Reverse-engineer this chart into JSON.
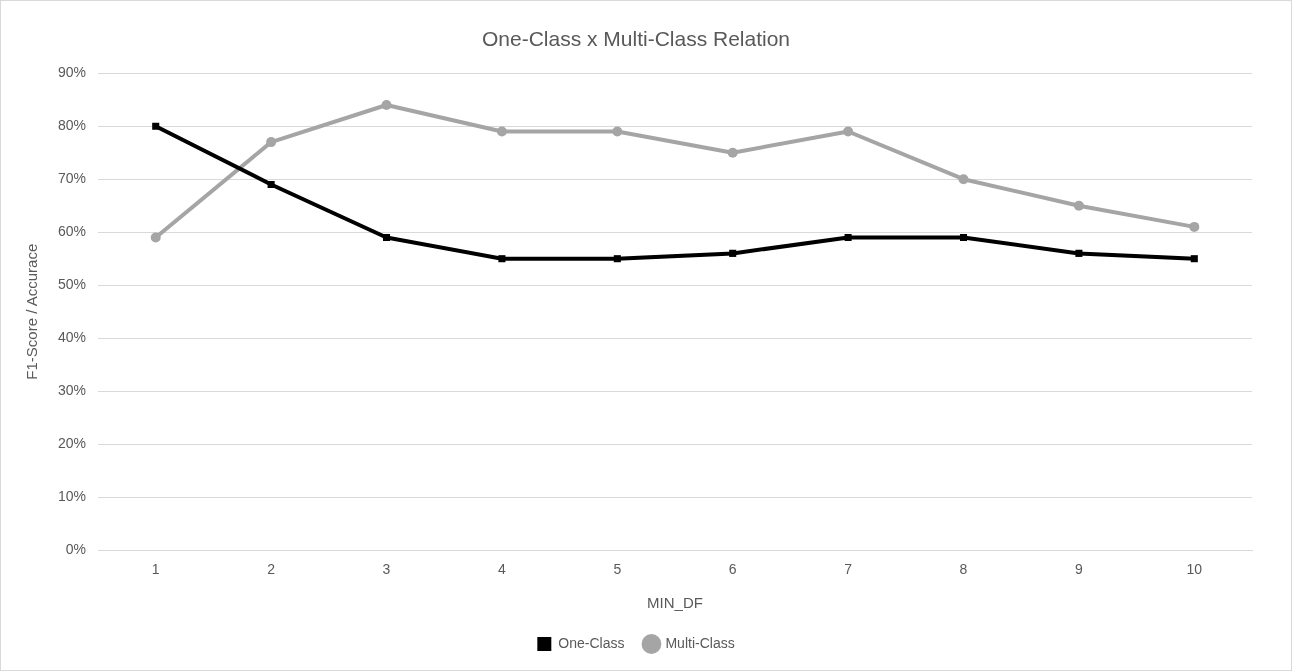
{
  "chart_data": {
    "type": "line",
    "title": "One-Class x Multi-Class Relation",
    "xlabel": "MIN_DF",
    "ylabel": "F1-Score / Accurace",
    "categories": [
      "1",
      "2",
      "3",
      "4",
      "5",
      "6",
      "7",
      "8",
      "9",
      "10"
    ],
    "series": [
      {
        "name": "One-Class",
        "color": "#000000",
        "marker": "square",
        "values": [
          80,
          69,
          59,
          55,
          55,
          56,
          59,
          59,
          56,
          55
        ]
      },
      {
        "name": "Multi-Class",
        "color": "#a5a5a5",
        "marker": "circle",
        "values": [
          59,
          77,
          84,
          79,
          79,
          75,
          79,
          70,
          65,
          61
        ]
      }
    ],
    "ylim": [
      0,
      90
    ],
    "yticks": [
      {
        "value": 0,
        "label": "0%"
      },
      {
        "value": 10,
        "label": "10%"
      },
      {
        "value": 20,
        "label": "20%"
      },
      {
        "value": 30,
        "label": "30%"
      },
      {
        "value": 40,
        "label": "40%"
      },
      {
        "value": 50,
        "label": "50%"
      },
      {
        "value": 60,
        "label": "60%"
      },
      {
        "value": 70,
        "label": "70%"
      },
      {
        "value": 80,
        "label": "80%"
      },
      {
        "value": 90,
        "label": "90%"
      }
    ],
    "grid": "y",
    "legend": "bottom",
    "line_style": "solid"
  }
}
